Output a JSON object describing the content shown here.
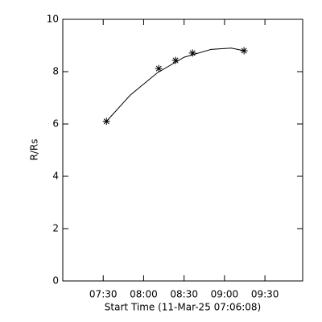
{
  "chart_data": {
    "type": "scatter",
    "x_label": "Start Time (11-Mar-25 07:06:08)",
    "y_label": "R/Rs",
    "xlim": [
      420,
      598
    ],
    "ylim": [
      0,
      10
    ],
    "xticks": [
      {
        "value": 450,
        "label": "07:30"
      },
      {
        "value": 480,
        "label": "08:00"
      },
      {
        "value": 510,
        "label": "08:30"
      },
      {
        "value": 540,
        "label": "09:00"
      },
      {
        "value": 570,
        "label": "09:30"
      }
    ],
    "yticks": [
      0,
      2,
      4,
      6,
      8,
      10
    ],
    "color": "#000000",
    "series": [
      {
        "x": [
          452.4,
          491.2,
          503.7,
          516.3,
          554.5
        ],
        "values": [
          6.1,
          8.12,
          8.43,
          8.71,
          8.8
        ]
      }
    ],
    "fit": {
      "x": [
        452.4,
        470,
        490,
        510,
        530,
        545,
        554.5
      ],
      "values": [
        6.1,
        7.1,
        7.95,
        8.55,
        8.85,
        8.9,
        8.8
      ]
    }
  }
}
